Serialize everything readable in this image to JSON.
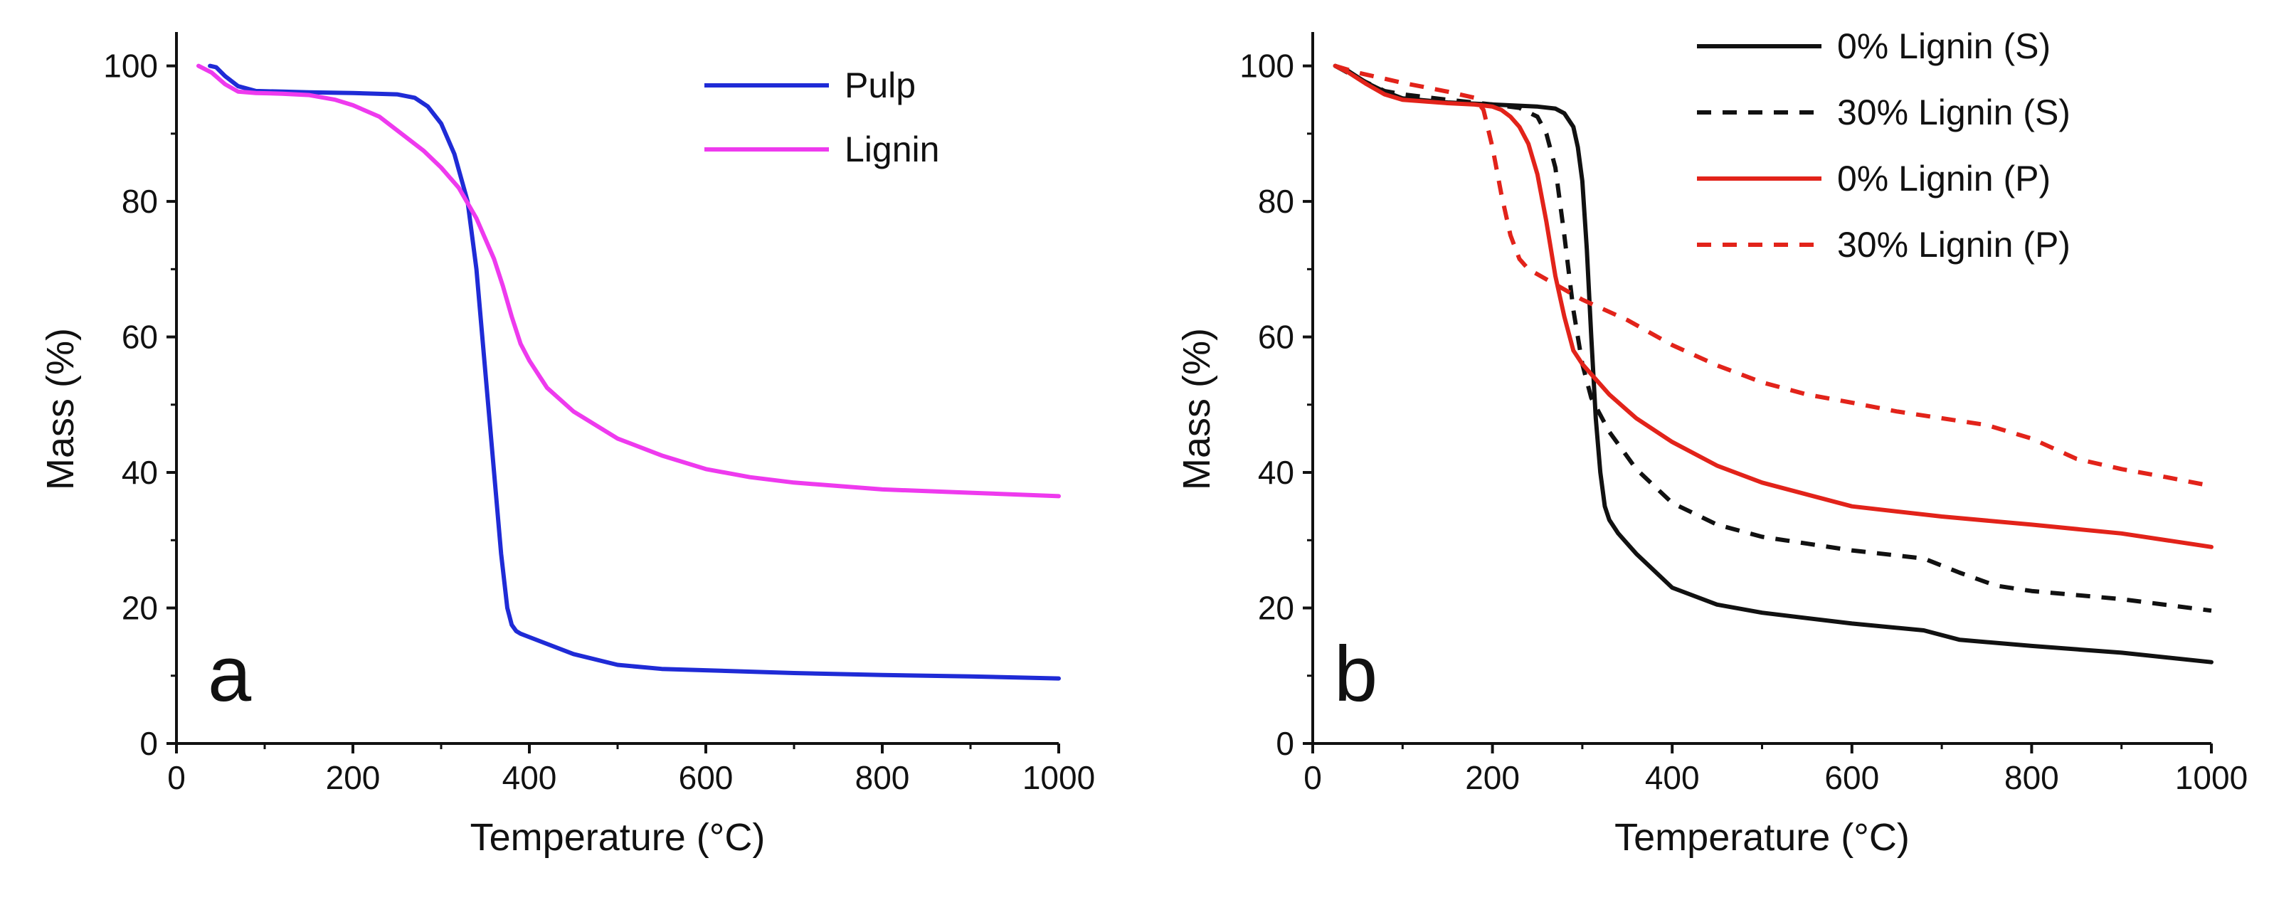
{
  "chart_data": [
    {
      "type": "line",
      "panel_label": "a",
      "xlabel": "Temperature (°C)",
      "ylabel": "Mass (%)",
      "xlim": [
        0,
        1000
      ],
      "ylim": [
        0,
        105
      ],
      "xticks": [
        "0",
        "200",
        "400",
        "600",
        "800",
        "1000"
      ],
      "yticks": [
        "0",
        "20",
        "40",
        "60",
        "80",
        "100"
      ],
      "legend_position": "top-right",
      "series": [
        {
          "name": "Pulp",
          "color": "#1f2bd6",
          "dash": "solid",
          "x": [
            38,
            45,
            55,
            70,
            90,
            120,
            150,
            200,
            250,
            270,
            285,
            300,
            315,
            330,
            340,
            350,
            360,
            368,
            375,
            380,
            385,
            390,
            400,
            450,
            500,
            550,
            600,
            700,
            800,
            900,
            1000
          ],
          "y": [
            100,
            99.8,
            98.5,
            97,
            96.3,
            96.2,
            96.1,
            96,
            95.8,
            95.3,
            94,
            91.5,
            87,
            80,
            70,
            55,
            40,
            28,
            20,
            17.5,
            16.6,
            16.2,
            15.7,
            13.2,
            11.6,
            11,
            10.8,
            10.4,
            10.1,
            9.9,
            9.6
          ]
        },
        {
          "name": "Lignin",
          "color": "#ee3aee",
          "dash": "solid",
          "x": [
            25,
            40,
            55,
            70,
            90,
            120,
            150,
            180,
            200,
            230,
            260,
            280,
            300,
            320,
            340,
            360,
            370,
            380,
            390,
            400,
            420,
            450,
            500,
            550,
            600,
            650,
            700,
            800,
            900,
            1000
          ],
          "y": [
            100,
            99,
            97.3,
            96.2,
            96,
            95.9,
            95.7,
            95,
            94.2,
            92.5,
            89.5,
            87.5,
            85,
            82,
            77.5,
            71.5,
            67.5,
            63,
            59,
            56.5,
            52.5,
            49,
            45,
            42.5,
            40.5,
            39.3,
            38.5,
            37.5,
            37,
            36.5
          ]
        }
      ]
    },
    {
      "type": "line",
      "panel_label": "b",
      "xlabel": "Temperature (°C)",
      "ylabel": "Mass (%)",
      "xlim": [
        0,
        1000
      ],
      "ylim": [
        0,
        105
      ],
      "xticks": [
        "0",
        "200",
        "400",
        "600",
        "800",
        "1000"
      ],
      "yticks": [
        "0",
        "20",
        "40",
        "60",
        "80",
        "100"
      ],
      "legend_position": "top-right",
      "series": [
        {
          "name": "0% Lignin (S)",
          "color": "#111111",
          "dash": "solid",
          "x": [
            25,
            40,
            60,
            80,
            100,
            150,
            200,
            250,
            270,
            280,
            290,
            295,
            300,
            305,
            310,
            315,
            320,
            325,
            330,
            340,
            360,
            400,
            450,
            500,
            600,
            680,
            720,
            800,
            900,
            1000
          ],
          "y": [
            100,
            99.2,
            97.5,
            96.2,
            95.2,
            94.6,
            94.3,
            94,
            93.7,
            93,
            91,
            88,
            83,
            73,
            60,
            48,
            40,
            35,
            33,
            31,
            28,
            23,
            20.5,
            19.3,
            17.7,
            16.7,
            15.3,
            14.4,
            13.4,
            12
          ]
        },
        {
          "name": "30% Lignin (S)",
          "color": "#111111",
          "dash": "dashed",
          "x": [
            25,
            50,
            80,
            100,
            150,
            200,
            230,
            250,
            260,
            270,
            280,
            290,
            300,
            310,
            330,
            360,
            400,
            450,
            500,
            600,
            680,
            720,
            760,
            800,
            900,
            1000
          ],
          "y": [
            100,
            98.2,
            96.3,
            95.8,
            95,
            94.3,
            93.8,
            92.5,
            90,
            85,
            75,
            64,
            56,
            51,
            46,
            40.5,
            35.5,
            32.3,
            30.5,
            28.5,
            27.3,
            25.2,
            23.3,
            22.5,
            21.3,
            19.6
          ]
        },
        {
          "name": "0% Lignin (P)",
          "color": "#e2231a",
          "dash": "solid",
          "x": [
            25,
            40,
            60,
            80,
            100,
            150,
            180,
            200,
            210,
            220,
            230,
            240,
            250,
            260,
            270,
            280,
            290,
            300,
            310,
            330,
            360,
            400,
            450,
            500,
            600,
            700,
            800,
            900,
            1000
          ],
          "y": [
            100,
            99,
            97.3,
            95.8,
            95,
            94.5,
            94.3,
            94,
            93.5,
            92.5,
            91,
            88.5,
            84,
            77,
            69,
            63,
            58,
            56,
            54.5,
            51.5,
            48,
            44.5,
            41,
            38.5,
            35,
            33.5,
            32.3,
            31,
            29
          ]
        },
        {
          "name": "30% Lignin (P)",
          "color": "#e2231a",
          "dash": "dashed",
          "x": [
            25,
            50,
            100,
            150,
            180,
            190,
            200,
            210,
            220,
            230,
            240,
            260,
            280,
            300,
            350,
            400,
            450,
            500,
            550,
            600,
            650,
            700,
            750,
            800,
            850,
            900,
            950,
            1000
          ],
          "y": [
            100,
            99,
            97.5,
            96.2,
            95.3,
            93.5,
            88,
            81,
            75,
            71.5,
            70,
            68.5,
            67,
            65.5,
            62.5,
            58.8,
            55.8,
            53.3,
            51.5,
            50.3,
            49,
            48,
            47,
            45,
            42,
            40.5,
            39.3,
            38
          ]
        }
      ]
    }
  ]
}
